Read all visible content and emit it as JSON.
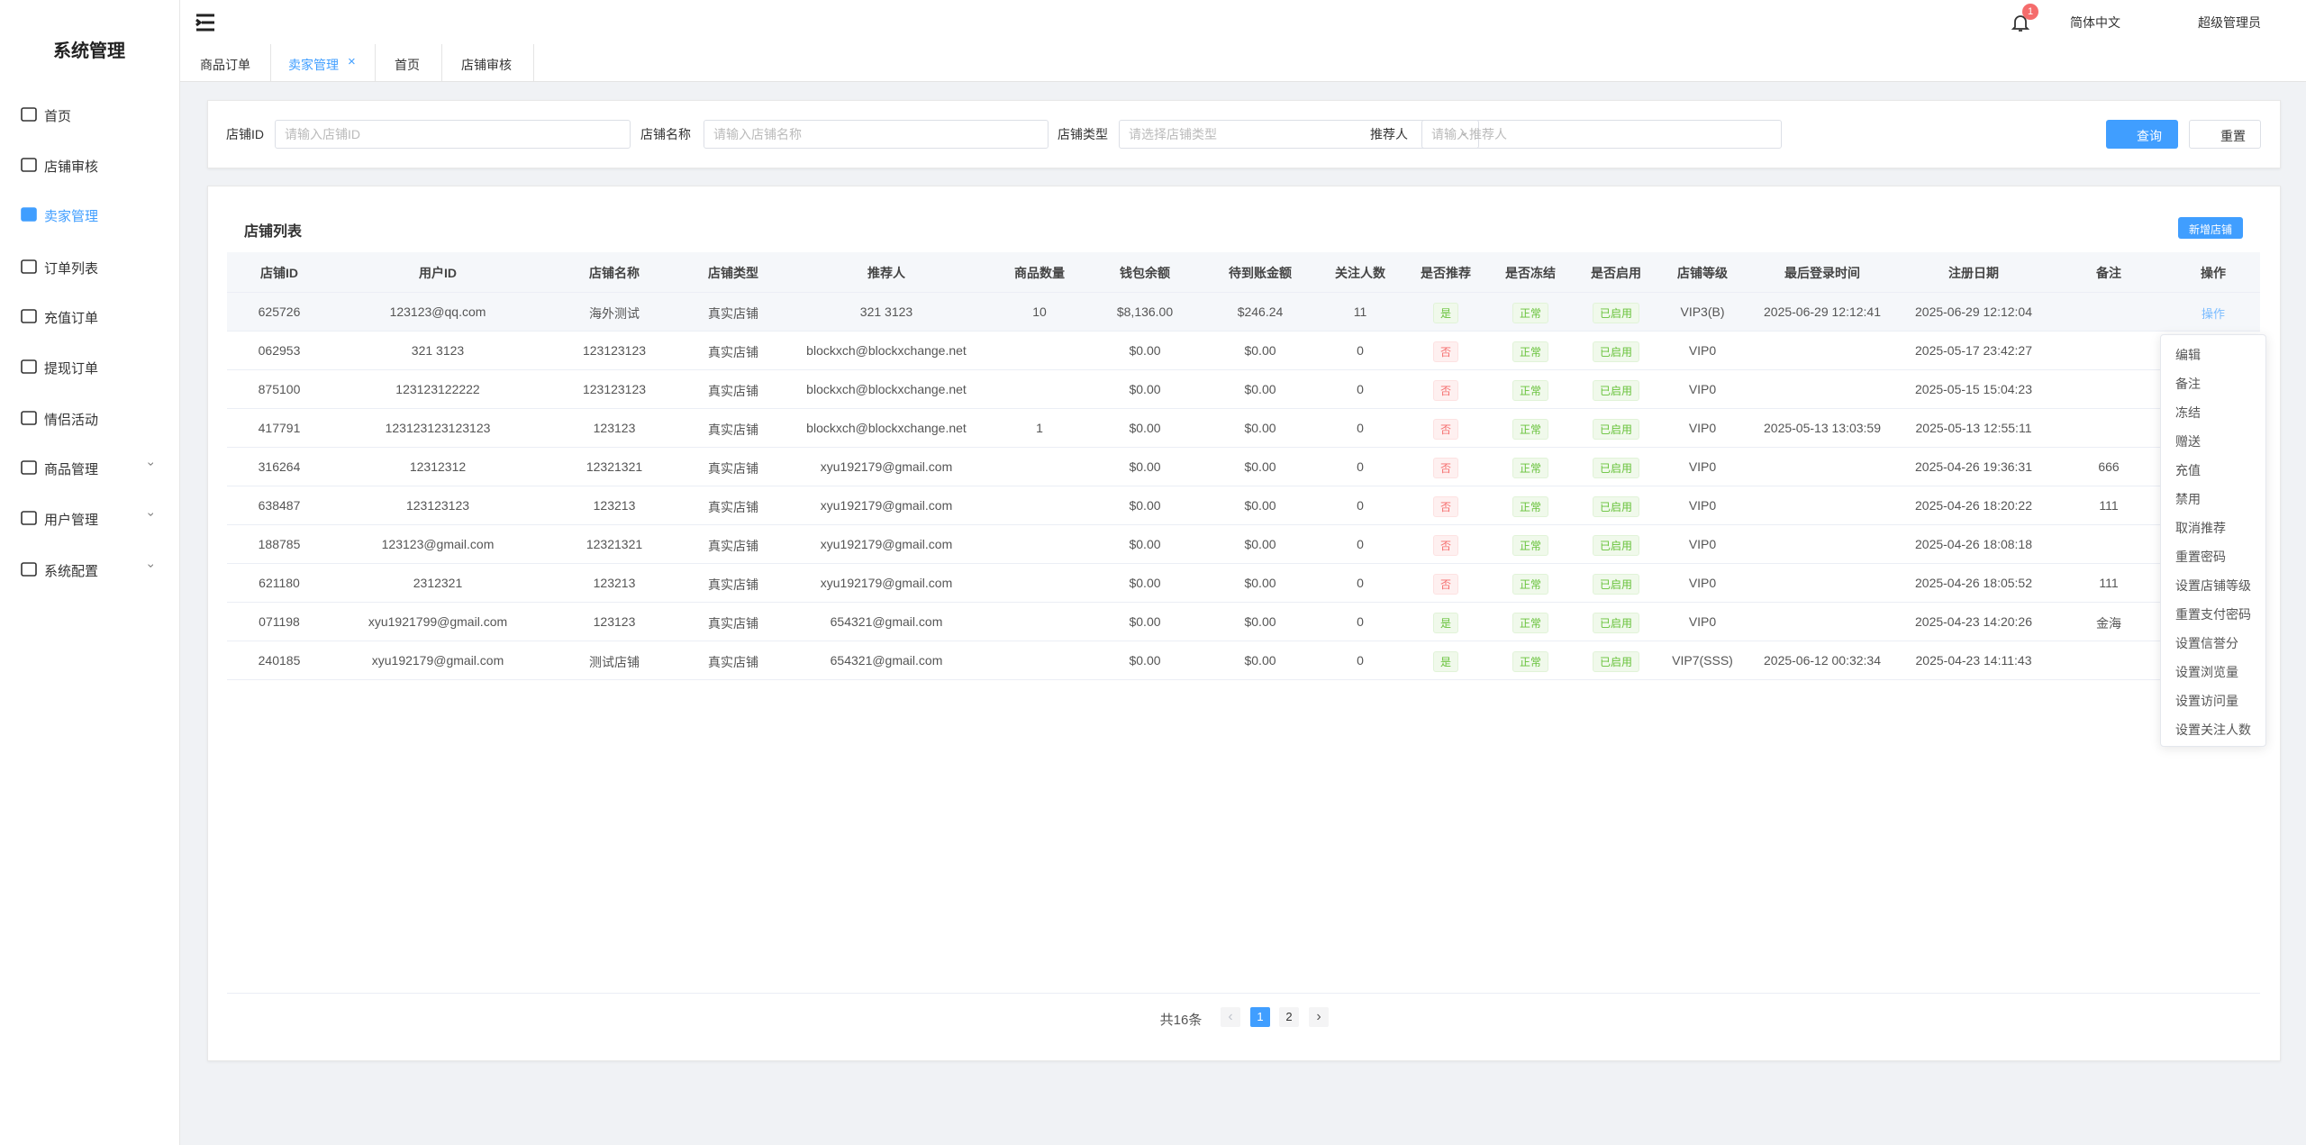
{
  "sidebar": {
    "title": "系统管理",
    "items": [
      {
        "label": "首页"
      },
      {
        "label": "店铺审核"
      },
      {
        "label": "卖家管理",
        "active": true
      },
      {
        "label": "订单列表"
      },
      {
        "label": "充值订单"
      },
      {
        "label": "提现订单"
      },
      {
        "label": "情侣活动"
      },
      {
        "label": "商品管理",
        "expandable": true
      },
      {
        "label": "用户管理",
        "expandable": true
      },
      {
        "label": "系统配置",
        "expandable": true
      }
    ]
  },
  "header": {
    "notification_count": "1",
    "language": "简体中文",
    "user": "超级管理员"
  },
  "tabs": [
    {
      "label": "商品订单"
    },
    {
      "label": "卖家管理",
      "active": true,
      "closable": "×"
    },
    {
      "label": "首页"
    },
    {
      "label": "店铺审核"
    }
  ],
  "search": {
    "fields": [
      {
        "label": "店铺ID",
        "placeholder": "请输入店铺ID"
      },
      {
        "label": "店铺名称",
        "placeholder": "请输入店铺名称"
      },
      {
        "label": "店铺类型",
        "placeholder": "请选择店铺类型",
        "select": true
      },
      {
        "label": "推荐人",
        "placeholder": "请输入推荐人"
      }
    ],
    "query_button": "查询",
    "reset_button": "重置"
  },
  "table": {
    "title": "店铺列表",
    "add_button": "新增店铺",
    "columns": [
      "店铺ID",
      "用户ID",
      "店铺名称",
      "店铺类型",
      "推荐人",
      "商品数量",
      "钱包余额",
      "待到账金额",
      "关注人数",
      "是否推荐",
      "是否冻结",
      "是否启用",
      "店铺等级",
      "最后登录时间",
      "注册日期",
      "备注",
      "操作"
    ],
    "rows": [
      [
        "625726",
        "123123@qq.com",
        "海外测试",
        "真实店铺",
        "321 3123",
        "10",
        "$8,136.00",
        "$246.24",
        "11",
        {
          "text": "是",
          "color": "green"
        },
        {
          "text": "正常",
          "color": "green"
        },
        {
          "text": "已启用",
          "color": "green"
        },
        "VIP3(B)",
        "2025-06-29 12:12:41",
        "2025-06-29 12:12:04",
        null,
        "操作"
      ],
      [
        "062953",
        "321 3123",
        "123123123",
        "真实店铺",
        "blockxch@blockxchange.net",
        null,
        "$0.00",
        "$0.00",
        "0",
        {
          "text": "否",
          "color": "red"
        },
        {
          "text": "正常",
          "color": "green"
        },
        {
          "text": "已启用",
          "color": "green"
        },
        "VIP0",
        null,
        "2025-05-17 23:42:27",
        null,
        null
      ],
      [
        "875100",
        "123123122222",
        "123123123",
        "真实店铺",
        "blockxch@blockxchange.net",
        null,
        "$0.00",
        "$0.00",
        "0",
        {
          "text": "否",
          "color": "red"
        },
        {
          "text": "正常",
          "color": "green"
        },
        {
          "text": "已启用",
          "color": "green"
        },
        "VIP0",
        null,
        "2025-05-15 15:04:23",
        null,
        null
      ],
      [
        "417791",
        "123123123123123",
        "123123",
        "真实店铺",
        "blockxch@blockxchange.net",
        "1",
        "$0.00",
        "$0.00",
        "0",
        {
          "text": "否",
          "color": "red"
        },
        {
          "text": "正常",
          "color": "green"
        },
        {
          "text": "已启用",
          "color": "green"
        },
        "VIP0",
        "2025-05-13 13:03:59",
        "2025-05-13 12:55:11",
        null,
        null
      ],
      [
        "316264",
        "12312312",
        "12321321",
        "真实店铺",
        "xyu192179@gmail.com",
        null,
        "$0.00",
        "$0.00",
        "0",
        {
          "text": "否",
          "color": "red"
        },
        {
          "text": "正常",
          "color": "green"
        },
        {
          "text": "已启用",
          "color": "green"
        },
        "VIP0",
        null,
        "2025-04-26 19:36:31",
        "666",
        null
      ],
      [
        "638487",
        "123123123",
        "123213",
        "真实店铺",
        "xyu192179@gmail.com",
        null,
        "$0.00",
        "$0.00",
        "0",
        {
          "text": "否",
          "color": "red"
        },
        {
          "text": "正常",
          "color": "green"
        },
        {
          "text": "已启用",
          "color": "green"
        },
        "VIP0",
        null,
        "2025-04-26 18:20:22",
        "111",
        null
      ],
      [
        "188785",
        "123123@gmail.com",
        "12321321",
        "真实店铺",
        "xyu192179@gmail.com",
        null,
        "$0.00",
        "$0.00",
        "0",
        {
          "text": "否",
          "color": "red"
        },
        {
          "text": "正常",
          "color": "green"
        },
        {
          "text": "已启用",
          "color": "green"
        },
        "VIP0",
        null,
        "2025-04-26 18:08:18",
        null,
        null
      ],
      [
        "621180",
        "2312321",
        "123213",
        "真实店铺",
        "xyu192179@gmail.com",
        null,
        "$0.00",
        "$0.00",
        "0",
        {
          "text": "否",
          "color": "red"
        },
        {
          "text": "正常",
          "color": "green"
        },
        {
          "text": "已启用",
          "color": "green"
        },
        "VIP0",
        null,
        "2025-04-26 18:05:52",
        "111",
        null
      ],
      [
        "071198",
        "xyu1921799@gmail.com",
        "123123",
        "真实店铺",
        "654321@gmail.com",
        null,
        "$0.00",
        "$0.00",
        "0",
        {
          "text": "是",
          "color": "green"
        },
        {
          "text": "正常",
          "color": "green"
        },
        {
          "text": "已启用",
          "color": "green"
        },
        "VIP0",
        null,
        "2025-04-23 14:20:26",
        "金海",
        null
      ],
      [
        "240185",
        "xyu192179@gmail.com",
        "测试店铺",
        "真实店铺",
        "654321@gmail.com",
        null,
        "$0.00",
        "$0.00",
        "0",
        {
          "text": "是",
          "color": "green"
        },
        {
          "text": "正常",
          "color": "green"
        },
        {
          "text": "已启用",
          "color": "green"
        },
        "VIP7(SSS)",
        "2025-06-12 00:32:34",
        "2025-04-23 14:11:43",
        null,
        null
      ]
    ]
  },
  "dropdown": [
    "编辑",
    "备注",
    "冻结",
    "赠送",
    "充值",
    "禁用",
    "取消推荐",
    "重置密码",
    "设置店铺等级",
    "重置支付密码",
    "设置信誉分",
    "设置浏览量",
    "设置访问量",
    "设置关注人数"
  ],
  "pagination": {
    "total": "共16条",
    "pages": [
      "1",
      "2"
    ],
    "current": 0
  }
}
